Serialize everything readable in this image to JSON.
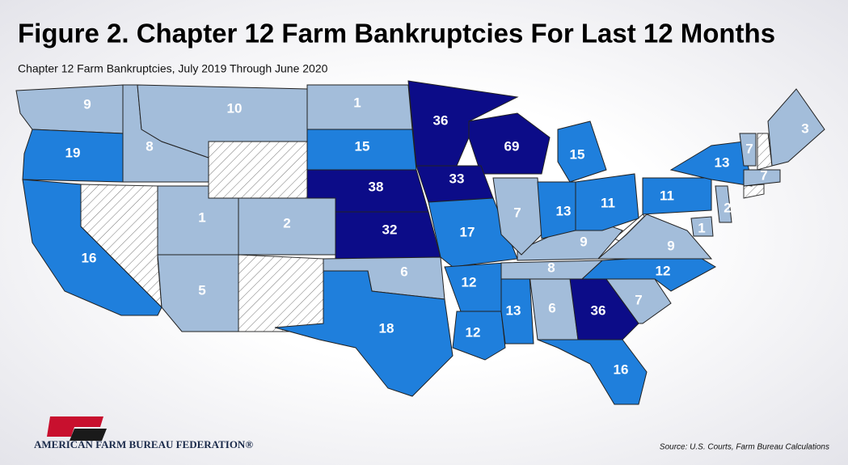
{
  "header": {
    "title": "Figure 2. Chapter 12 Farm Bankruptcies For Last 12 Months",
    "subtitle": "Chapter 12 Farm Bankruptcies, July 2019 Through June 2020"
  },
  "map": {
    "regions": [
      {
        "value": 9,
        "color": "#a3bdda"
      },
      {
        "value": 19,
        "color": "#1f7fdc"
      },
      {
        "value": 16,
        "color": "#1f7fdc"
      },
      {
        "value": 8,
        "color": "#a3bdda"
      },
      {
        "value": 10,
        "color": "#a3bdda"
      },
      {
        "value": 1,
        "color": "#a3bdda"
      },
      {
        "value": 2,
        "color": "#a3bdda"
      },
      {
        "value": 5,
        "color": "#a3bdda"
      },
      {
        "value": 1,
        "color": "#a3bdda"
      },
      {
        "value": 15,
        "color": "#1f7fdc"
      },
      {
        "value": 38,
        "color": "#0c0c88"
      },
      {
        "value": 32,
        "color": "#0c0c88"
      },
      {
        "value": 6,
        "color": "#a3bdda"
      },
      {
        "value": 18,
        "color": "#1f7fdc"
      },
      {
        "value": 36,
        "color": "#0c0c88"
      },
      {
        "value": 69,
        "color": "#0c0c88"
      },
      {
        "value": 33,
        "color": "#0c0c88"
      },
      {
        "value": 17,
        "color": "#1f7fdc"
      },
      {
        "value": 12,
        "color": "#1f7fdc"
      },
      {
        "value": 12,
        "color": "#1f7fdc"
      },
      {
        "value": 13,
        "color": "#1f7fdc"
      },
      {
        "value": 6,
        "color": "#a3bdda"
      },
      {
        "value": 36,
        "color": "#0c0c88"
      },
      {
        "value": 16,
        "color": "#1f7fdc"
      },
      {
        "value": 7,
        "color": "#a3bdda"
      },
      {
        "value": 12,
        "color": "#1f7fdc"
      },
      {
        "value": 8,
        "color": "#a3bdda"
      },
      {
        "value": 9,
        "color": "#a3bdda"
      },
      {
        "value": 9,
        "color": "#a3bdda"
      },
      {
        "value": 7,
        "color": "#a3bdda"
      },
      {
        "value": 13,
        "color": "#1f7fdc"
      },
      {
        "value": 11,
        "color": "#1f7fdc"
      },
      {
        "value": 15,
        "color": "#1f7fdc"
      },
      {
        "value": 11,
        "color": "#1f7fdc"
      },
      {
        "value": 13,
        "color": "#1f7fdc"
      },
      {
        "value": 7,
        "color": "#a3bdda"
      },
      {
        "value": 3,
        "color": "#a3bdda"
      },
      {
        "value": 7,
        "color": "#a3bdda"
      },
      {
        "value": 2,
        "color": "#a3bdda"
      },
      {
        "value": 1,
        "color": "#a3bdda"
      }
    ]
  },
  "footer": {
    "organization": "AMERICAN FARM BUREAU FEDERATION®",
    "source": "Source: U.S. Courts, Farm Bureau Calculations"
  }
}
